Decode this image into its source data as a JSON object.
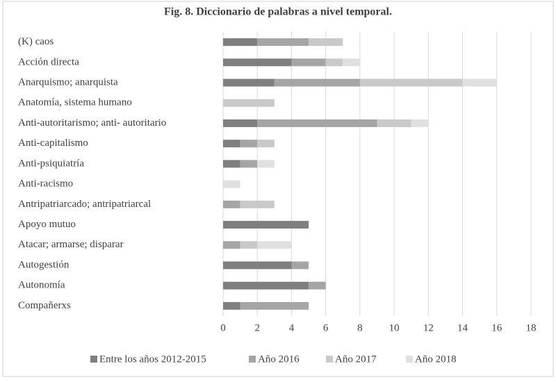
{
  "chart_data": {
    "type": "stacked-barh",
    "title": "Fig. 8. Diccionario de palabras a nivel temporal.",
    "categories": [
      "(K) caos",
      "Acción directa",
      "Anarquismo; anarquista",
      "Anatomía, sistema humano",
      "Anti-autoritarismo; anti- autoritario",
      "Anti-capitalismo",
      "Anti-psiquiatría",
      "Anti-racismo",
      "Antripatriarcado; antripatriarcal",
      "Apoyo mutuo",
      "Atacar; armarse; disparar",
      "Autogestión",
      "Autonomía",
      "Compañerxs"
    ],
    "series": [
      {
        "name": "Entre los años 2012-2015",
        "color": "#7f7f7f",
        "values": [
          2,
          4,
          3,
          0,
          2,
          1,
          1,
          0,
          0,
          5,
          0,
          4,
          5,
          1
        ]
      },
      {
        "name": "Año 2016",
        "color": "#a5a5a5",
        "values": [
          3,
          2,
          5,
          0,
          7,
          1,
          1,
          0,
          1,
          0,
          1,
          1,
          1,
          4
        ]
      },
      {
        "name": "Año 2017",
        "color": "#c9c9c9",
        "values": [
          2,
          1,
          6,
          3,
          2,
          1,
          0,
          0,
          2,
          0,
          1,
          0,
          0,
          0
        ]
      },
      {
        "name": "Año 2018",
        "color": "#e0e0e0",
        "values": [
          0,
          1,
          2,
          0,
          1,
          0,
          1,
          1,
          0,
          0,
          2,
          0,
          0,
          0
        ]
      }
    ],
    "xlim": [
      0,
      18
    ],
    "xticks": [
      0,
      2,
      4,
      6,
      8,
      10,
      12,
      14,
      16,
      18
    ],
    "grid": true,
    "legend": "bottom"
  }
}
